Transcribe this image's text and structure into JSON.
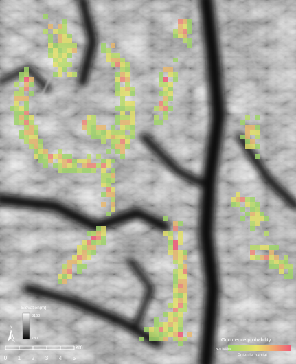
{
  "map": {
    "elevation_legend": {
      "title": "Elevation(m)",
      "max": "3160",
      "min": "780"
    },
    "north": "N",
    "scale": {
      "labels": [
        "0",
        "1",
        "2",
        "3",
        "4",
        "5"
      ],
      "unit": "km"
    },
    "probability_legend": {
      "title": "Occurence probability",
      "low": "Non habitat",
      "high": "Potential habitat"
    }
  }
}
